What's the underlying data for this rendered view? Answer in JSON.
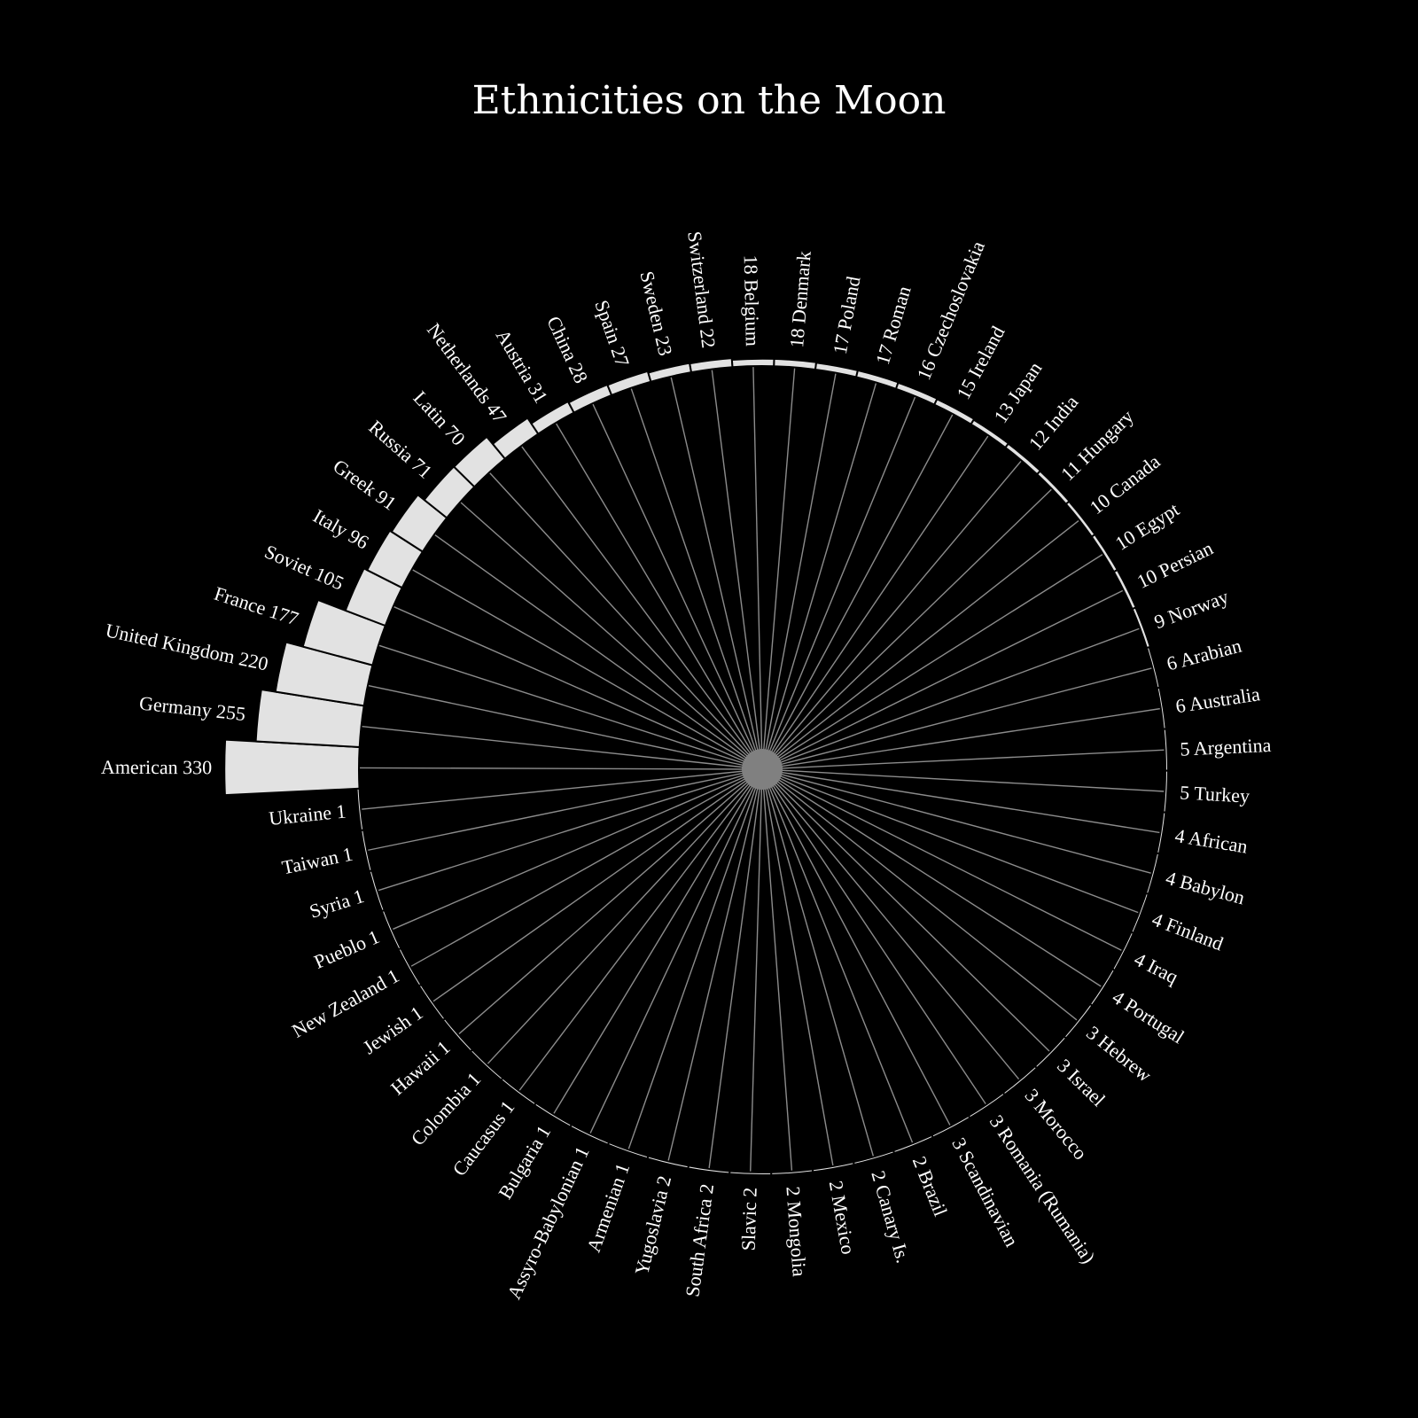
{
  "colors": {
    "background": "#000000",
    "bar": "#e2e2e2",
    "spoke": "#8c8c8c",
    "hub": "#808080",
    "text": "#ffffff"
  },
  "chart_data": {
    "type": "bar",
    "layout": "radial",
    "title": "Ethnicities on the Moon",
    "order": "descending clockwise from left",
    "categories": [
      "American",
      "Germany",
      "United Kingdom",
      "France",
      "Soviet",
      "Italy",
      "Greek",
      "Russia",
      "Latin",
      "Netherlands",
      "Austria",
      "China",
      "Spain",
      "Sweden",
      "Switzerland",
      "Belgium",
      "Denmark",
      "Poland",
      "Roman",
      "Czechoslovakia",
      "Ireland",
      "Japan",
      "India",
      "Hungary",
      "Canada",
      "Egypt",
      "Persian",
      "Norway",
      "Arabian",
      "Australia",
      "Argentina",
      "Turkey",
      "African",
      "Babylon",
      "Finland",
      "Iraq",
      "Portugal",
      "Hebrew",
      "Israel",
      "Morocco",
      "Romania (Rumania)",
      "Scandinavian",
      "Brazil",
      "Canary Is.",
      "Mexico",
      "Mongolia",
      "Slavic",
      "South Africa",
      "Yugoslavia",
      "Armenian",
      "Assyro-Babylonian",
      "Bulgaria",
      "Caucasus",
      "Colombia",
      "Hawaii",
      "Jewish",
      "New Zealand",
      "Pueblo",
      "Syria",
      "Taiwan",
      "Ukraine"
    ],
    "values": [
      330,
      255,
      220,
      177,
      105,
      96,
      91,
      71,
      70,
      47,
      31,
      28,
      27,
      23,
      22,
      18,
      18,
      17,
      17,
      16,
      15,
      13,
      12,
      11,
      10,
      10,
      10,
      9,
      6,
      6,
      5,
      5,
      4,
      4,
      4,
      4,
      4,
      3,
      3,
      3,
      3,
      3,
      2,
      2,
      2,
      2,
      2,
      2,
      2,
      1,
      1,
      1,
      1,
      1,
      1,
      1,
      1,
      1,
      1,
      1,
      1
    ],
    "labels": [
      "American 330",
      "Germany 255",
      "United Kingdom 220",
      "France 177",
      "Soviet 105",
      "Italy 96",
      "Greek 91",
      "Russia 71",
      "Latin 70",
      "Netherlands 47",
      "Austria 31",
      "China 28",
      "Spain 27",
      "Sweden 23",
      "Switzerland 22",
      "18 Belgium",
      "18 Denmark",
      "17 Poland",
      "17 Roman",
      "16 Czechoslovakia",
      "15 Ireland",
      "13 Japan",
      "12 India",
      "11 Hungary",
      "10 Canada",
      "10 Egypt",
      "10 Persian",
      "9 Norway",
      "6 Arabian",
      "6 Australia",
      "5 Argentina",
      "5 Turkey",
      "4 African",
      "4 Babylon",
      "4 Finland",
      "4 Iraq",
      "4 Portugal",
      "3 Hebrew",
      "3 Israel",
      "3 Morocco",
      "3 Romania (Rumania)",
      "3 Scandinavian",
      "2 Brazil",
      "2 Canary Is.",
      "2 Mexico",
      "2 Mongolia",
      "Slavic 2",
      "South Africa 2",
      "Yugoslavia 2",
      "Armenian 1",
      "Assyro-Babylonian 1",
      "Bulgaria 1",
      "Caucasus 1",
      "Colombia 1",
      "Hawaii 1",
      "Jewish 1",
      "New Zealand 1",
      "Pueblo 1",
      "Syria 1",
      "Taiwan 1",
      "Ukraine 1"
    ],
    "grid": false,
    "legend": "none"
  }
}
